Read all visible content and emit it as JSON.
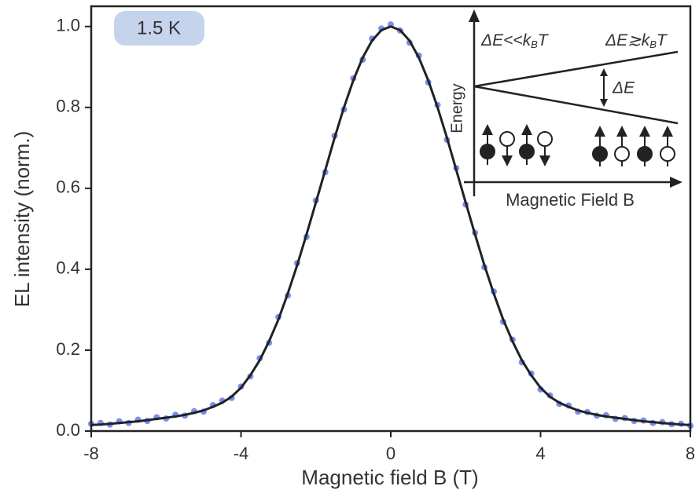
{
  "chart_data": {
    "type": "scatter",
    "xlabel": "Magnetic field B (T)",
    "ylabel": "EL intensity (norm.)",
    "xlim": [
      -8,
      8
    ],
    "ylim": [
      0,
      1.05
    ],
    "xticks": [
      -8,
      -4,
      0,
      4,
      8
    ],
    "yticks": [
      {
        "value": 0,
        "label": "0.0"
      },
      0.2,
      0.4,
      0.6,
      0.8,
      {
        "value": 1,
        "label": "1.0"
      }
    ],
    "x": [
      -8,
      -7.75,
      -7.5,
      -7.25,
      -7,
      -6.75,
      -6.5,
      -6.25,
      -6,
      -5.75,
      -5.5,
      -5.25,
      -5,
      -4.75,
      -4.5,
      -4.25,
      -4,
      -3.75,
      -3.5,
      -3.25,
      -3,
      -2.75,
      -2.5,
      -2.25,
      -2,
      -1.75,
      -1.5,
      -1.25,
      -1,
      -0.75,
      -0.5,
      -0.25,
      0,
      0.25,
      0.5,
      0.75,
      1,
      1.25,
      1.5,
      1.75,
      2,
      2.25,
      2.5,
      2.75,
      3,
      3.25,
      3.5,
      3.75,
      4,
      4.25,
      4.5,
      4.75,
      5,
      5.25,
      5.5,
      5.75,
      6,
      6.25,
      6.5,
      6.75,
      7,
      7.25,
      7.5,
      7.75,
      8
    ],
    "series": [
      {
        "color": "#7b8ff0",
        "marker": "dot",
        "values": [
          0.018,
          0.02,
          0.016,
          0.024,
          0.02,
          0.028,
          0.025,
          0.034,
          0.031,
          0.04,
          0.038,
          0.049,
          0.048,
          0.064,
          0.075,
          0.082,
          0.11,
          0.135,
          0.18,
          0.218,
          0.282,
          0.335,
          0.415,
          0.48,
          0.57,
          0.64,
          0.73,
          0.795,
          0.872,
          0.918,
          0.97,
          0.995,
          1.005,
          0.99,
          0.96,
          0.928,
          0.862,
          0.806,
          0.72,
          0.65,
          0.56,
          0.49,
          0.405,
          0.345,
          0.27,
          0.226,
          0.17,
          0.142,
          0.103,
          0.088,
          0.067,
          0.063,
          0.048,
          0.047,
          0.038,
          0.039,
          0.03,
          0.032,
          0.025,
          0.026,
          0.02,
          0.022,
          0.017,
          0.018,
          0.013
        ]
      },
      {
        "color": "#222222",
        "marker": "line",
        "values": [
          0.015,
          0.016,
          0.018,
          0.02,
          0.022,
          0.024,
          0.027,
          0.03,
          0.033,
          0.036,
          0.04,
          0.045,
          0.051,
          0.06,
          0.07,
          0.085,
          0.107,
          0.138,
          0.175,
          0.222,
          0.276,
          0.34,
          0.41,
          0.486,
          0.565,
          0.645,
          0.725,
          0.8,
          0.867,
          0.923,
          0.965,
          0.991,
          1.0,
          0.991,
          0.965,
          0.923,
          0.867,
          0.8,
          0.725,
          0.645,
          0.565,
          0.486,
          0.41,
          0.34,
          0.276,
          0.222,
          0.175,
          0.138,
          0.107,
          0.085,
          0.07,
          0.06,
          0.051,
          0.045,
          0.04,
          0.036,
          0.033,
          0.03,
          0.027,
          0.024,
          0.022,
          0.02,
          0.018,
          0.016,
          0.015
        ]
      }
    ],
    "badge": "1.5 K",
    "inset": {
      "label_low": [
        "ΔE<<k",
        "B",
        "T"
      ],
      "label_high": [
        "ΔE≳k",
        "B",
        "T"
      ],
      "gap_label": "ΔE",
      "ylabel": "Energy",
      "xlabel": "Magnetic Field B"
    }
  }
}
